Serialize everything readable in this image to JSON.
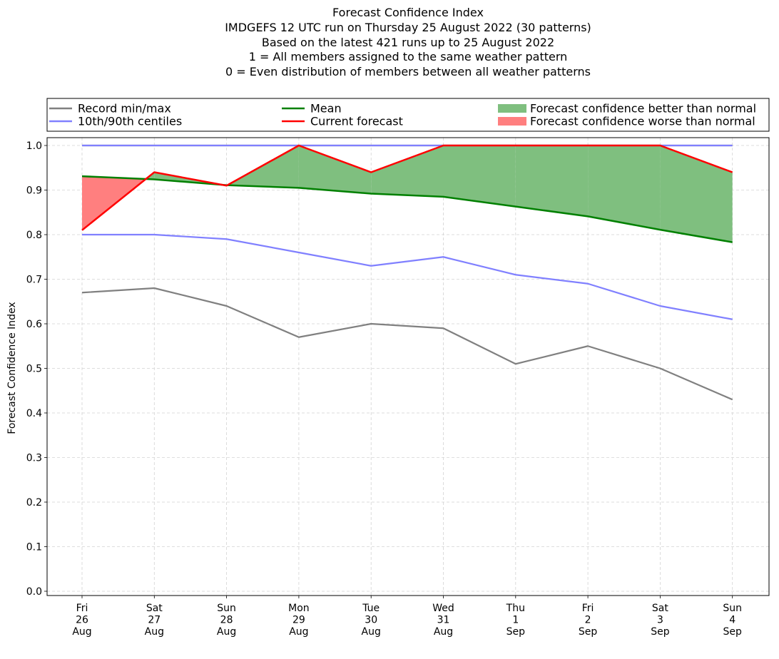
{
  "title_lines": [
    "Forecast Confidence Index",
    "IMDGEFS 12 UTC run on Thursday 25 August 2022 (30 patterns)",
    "Based on the latest 421 runs up to 25 August 2022",
    "1 = All members assigned to the same weather pattern",
    "0 = Even distribution of members between all weather patterns"
  ],
  "colors": {
    "record": "#808080",
    "centiles": "#8080ff",
    "mean": "#008000",
    "current": "#ff0000",
    "better_fill": "#7fbf7f",
    "worse_fill": "#ff7f7f",
    "grid": "#d3d3d3"
  },
  "legend": {
    "placement": "top (above axes, 3 columns)",
    "items": [
      {
        "label": "Record min/max",
        "kind": "line",
        "color": "#808080"
      },
      {
        "label": "10th/90th centiles",
        "kind": "line",
        "color": "#8080ff"
      },
      {
        "label": "Mean",
        "kind": "line",
        "color": "#008000"
      },
      {
        "label": "Current forecast",
        "kind": "line",
        "color": "#ff0000"
      },
      {
        "label": "Forecast confidence better than normal",
        "kind": "patch",
        "color": "#7fbf7f"
      },
      {
        "label": "Forecast confidence worse than normal",
        "kind": "patch",
        "color": "#ff7f7f"
      }
    ]
  },
  "chart_data": {
    "type": "line",
    "ylabel": "Forecast Confidence Index",
    "xlabel": "",
    "ylim": [
      0,
      1
    ],
    "yticks": [
      "0.0",
      "0.1",
      "0.2",
      "0.3",
      "0.4",
      "0.5",
      "0.6",
      "0.7",
      "0.8",
      "0.9",
      "1.0"
    ],
    "grid": true,
    "categories": [
      [
        "Fri",
        "26",
        "Aug"
      ],
      [
        "Sat",
        "27",
        "Aug"
      ],
      [
        "Sun",
        "28",
        "Aug"
      ],
      [
        "Mon",
        "29",
        "Aug"
      ],
      [
        "Tue",
        "30",
        "Aug"
      ],
      [
        "Wed",
        "31",
        "Aug"
      ],
      [
        "Thu",
        "1",
        "Sep"
      ],
      [
        "Fri",
        "2",
        "Sep"
      ],
      [
        "Sat",
        "3",
        "Sep"
      ],
      [
        "Sun",
        "4",
        "Sep"
      ]
    ],
    "series": [
      {
        "name": "Record min/max",
        "role": "record_min",
        "values": [
          0.67,
          0.68,
          0.64,
          0.57,
          0.6,
          0.59,
          0.51,
          0.55,
          0.5,
          0.43
        ]
      },
      {
        "name": "Record min/max",
        "role": "record_max",
        "values": [
          1.0,
          1.0,
          1.0,
          1.0,
          1.0,
          1.0,
          1.0,
          1.0,
          1.0,
          1.0
        ]
      },
      {
        "name": "10th/90th centiles",
        "role": "p10",
        "values": [
          0.8,
          0.8,
          0.79,
          0.76,
          0.73,
          0.75,
          0.71,
          0.69,
          0.64,
          0.61
        ]
      },
      {
        "name": "10th/90th centiles",
        "role": "p90",
        "values": [
          1.0,
          1.0,
          1.0,
          1.0,
          1.0,
          1.0,
          1.0,
          1.0,
          1.0,
          1.0
        ]
      },
      {
        "name": "Mean",
        "role": "mean",
        "values": [
          0.931,
          0.924,
          0.911,
          0.905,
          0.892,
          0.885,
          0.863,
          0.841,
          0.811,
          0.783
        ]
      },
      {
        "name": "Current forecast",
        "role": "current",
        "values": [
          0.81,
          0.94,
          0.91,
          1.0,
          0.94,
          1.0,
          1.0,
          1.0,
          1.0,
          0.94
        ]
      }
    ]
  }
}
